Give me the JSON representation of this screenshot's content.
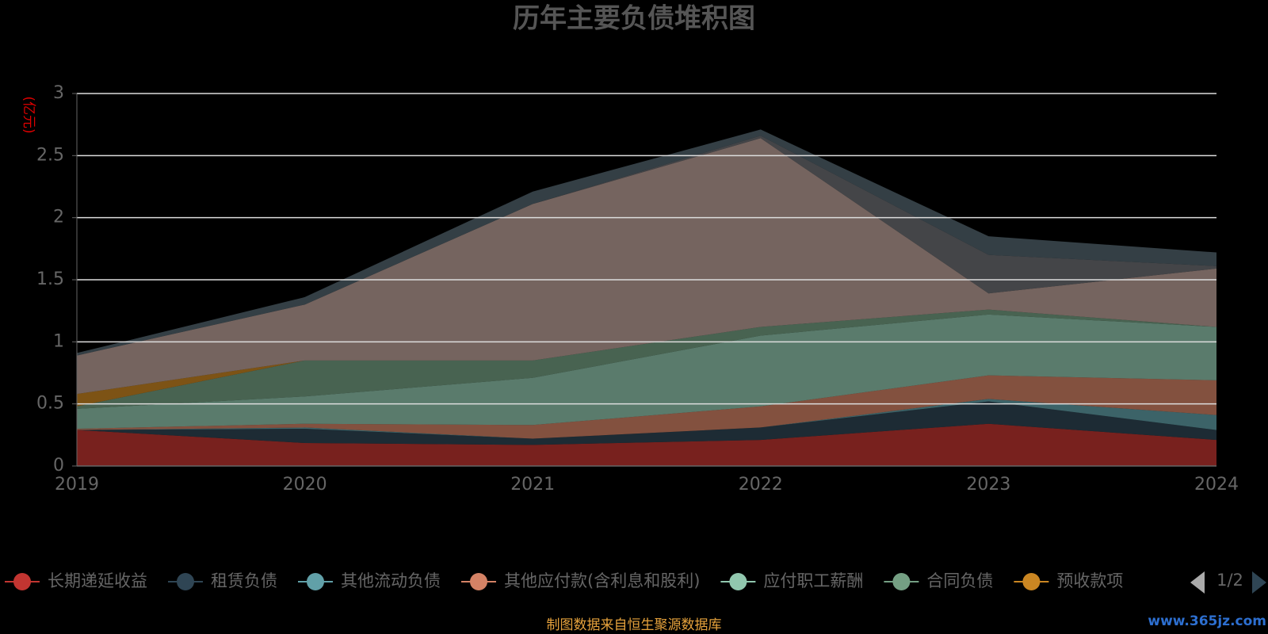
{
  "chart_data": {
    "type": "stacked_area",
    "title": "历年主要负债堆积图",
    "y_unit": "(亿元)",
    "categories": [
      "2019",
      "2020",
      "2021",
      "2022",
      "2023",
      "2024"
    ],
    "ylim": [
      0,
      3
    ],
    "yticks": [
      0,
      0.5,
      1,
      1.5,
      2,
      2.5,
      3
    ],
    "grid": true,
    "series": [
      {
        "name": "长期递延收益",
        "color": "#c23531",
        "values": [
          0.29,
          0.185,
          0.17,
          0.21,
          0.34,
          0.21
        ]
      },
      {
        "name": "租赁负债",
        "color": "#2f4554",
        "values": [
          0,
          0.115,
          0.05,
          0.1,
          0.18,
          0.08
        ]
      },
      {
        "name": "其他流动负债",
        "color": "#61a0a8",
        "values": [
          0,
          0.01,
          0,
          0,
          0.02,
          0.12
        ]
      },
      {
        "name": "其他应付款(含利息和股利)",
        "color": "#d48265",
        "values": [
          0.01,
          0.03,
          0.11,
          0.17,
          0.19,
          0.28
        ]
      },
      {
        "name": "应付职工薪酬",
        "color": "#91c7ae",
        "values": [
          0.16,
          0.22,
          0.38,
          0.57,
          0.49,
          0.43
        ]
      },
      {
        "name": "合同负债",
        "color": "#749f83",
        "values": [
          0.02,
          0.29,
          0.14,
          0.07,
          0.04,
          0
        ]
      },
      {
        "name": "预收款项",
        "color": "#ca8622",
        "values": [
          0.1,
          0,
          0,
          0,
          0,
          0
        ]
      },
      {
        "color": "#bda29a",
        "values": [
          0.31,
          0.45,
          1.26,
          1.52,
          0.13,
          0.47
        ]
      },
      {
        "color": "#6e7074",
        "values": [
          0,
          0,
          0,
          0.02,
          0.31,
          0.02
        ]
      },
      {
        "color": "#546570",
        "values": [
          0.02,
          0.06,
          0.1,
          0.05,
          0.15,
          0.11
        ]
      }
    ],
    "legend_page": "1/2",
    "source": "制图数据来自恒生聚源数据库",
    "watermark": "www.365jz.com"
  }
}
